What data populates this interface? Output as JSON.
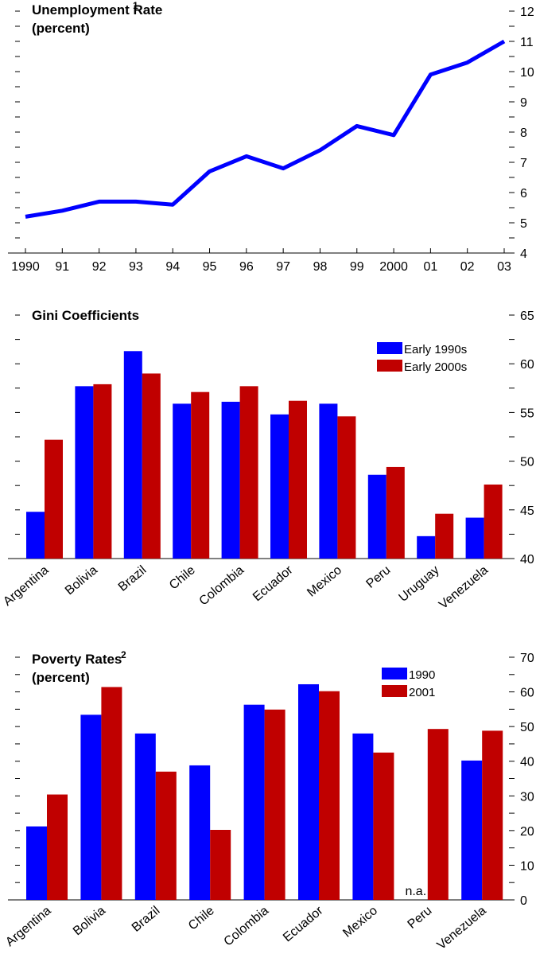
{
  "chart_data": [
    {
      "type": "line",
      "title": "Unemployment Rate",
      "title_sup": "1",
      "subtitle": "(percent)",
      "x": [
        "1990",
        "91",
        "92",
        "93",
        "94",
        "95",
        "96",
        "97",
        "98",
        "99",
        "2000",
        "01",
        "02",
        "03"
      ],
      "series": [
        {
          "values": [
            5.2,
            5.4,
            5.7,
            5.7,
            5.6,
            6.7,
            7.2,
            6.8,
            7.4,
            8.2,
            7.9,
            9.9,
            10.3,
            11.0
          ],
          "color": "#0000ff"
        }
      ],
      "ylim": [
        4,
        12
      ],
      "yticks": [
        4,
        5,
        6,
        7,
        8,
        9,
        10,
        11,
        12
      ],
      "yaxis_side": "right",
      "grid": false
    },
    {
      "type": "bar",
      "title": "Gini Coefficients",
      "categories": [
        "Argentina",
        "Bolivia",
        "Brazil",
        "Chile",
        "Colombia",
        "Ecuador",
        "Mexico",
        "Peru",
        "Uruguay",
        "Venezuela"
      ],
      "series": [
        {
          "name": "Early 1990s",
          "color": "#0000ff",
          "values": [
            44.8,
            57.7,
            61.3,
            55.9,
            56.1,
            54.8,
            55.9,
            48.6,
            42.3,
            44.2
          ]
        },
        {
          "name": "Early 2000s",
          "color": "#c00000",
          "values": [
            52.2,
            57.9,
            59.0,
            57.1,
            57.7,
            56.2,
            54.6,
            49.4,
            44.6,
            47.6
          ]
        }
      ],
      "ylim": [
        40,
        65
      ],
      "yticks": [
        40,
        45,
        50,
        55,
        60,
        65
      ],
      "yaxis_side": "right",
      "legend_position": "top-right",
      "grid": false
    },
    {
      "type": "bar",
      "title": "Poverty Rates",
      "title_sup": "2",
      "subtitle": "(percent)",
      "categories": [
        "Argentina",
        "Bolivia",
        "Brazil",
        "Chile",
        "Colombia",
        "Ecuador",
        "Mexico",
        "Peru",
        "Venezuela"
      ],
      "series": [
        {
          "name": "1990",
          "color": "#0000ff",
          "values": [
            21.2,
            53.4,
            48.0,
            38.8,
            56.3,
            62.2,
            48.0,
            null,
            40.2
          ]
        },
        {
          "name": "2001",
          "color": "#c00000",
          "values": [
            30.4,
            61.4,
            37.0,
            20.2,
            54.9,
            60.2,
            42.5,
            49.3,
            48.8
          ]
        }
      ],
      "annotations": [
        {
          "category": "Peru",
          "series": "1990",
          "text": "n.a."
        }
      ],
      "ylim": [
        0,
        70
      ],
      "yticks": [
        0,
        10,
        20,
        30,
        40,
        50,
        60,
        70
      ],
      "yaxis_side": "right",
      "legend_position": "top-right",
      "grid": false
    }
  ]
}
